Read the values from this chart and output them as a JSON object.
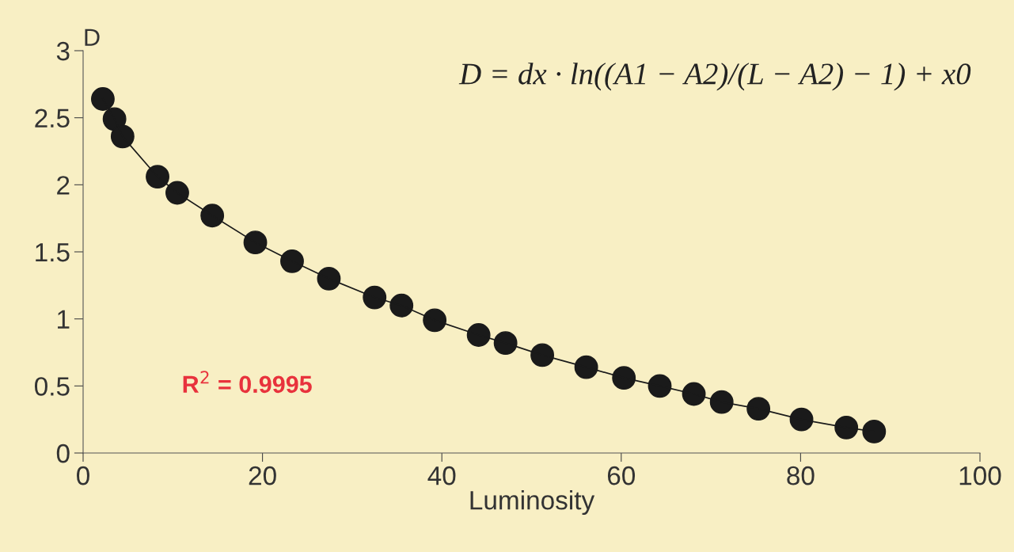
{
  "chart_data": {
    "type": "scatter",
    "xlabel": "Luminosity",
    "ylabel": "D",
    "xlim": [
      0,
      100
    ],
    "xticks": [
      0,
      20,
      40,
      60,
      80,
      100
    ],
    "ylim": [
      0,
      3
    ],
    "yticks": [
      0,
      {
        "value": 0.5,
        "label": "0.5"
      },
      1,
      {
        "value": 1.5,
        "label": "1.5"
      },
      2,
      {
        "value": 2.5,
        "label": "2.5"
      },
      3
    ],
    "grid": false,
    "legend": false,
    "series": [
      {
        "marker": "circle",
        "color": "#1a1a1a",
        "x": [
          2.2,
          3.5,
          4.4,
          8.3,
          10.5,
          14.4,
          19.2,
          23.3,
          27.4,
          32.5,
          35.5,
          39.2,
          44.1,
          47.1,
          51.2,
          56.1,
          60.3,
          64.3,
          68.1,
          71.2,
          75.3,
          80.1,
          85.1,
          88.2
        ],
        "values": [
          2.64,
          2.49,
          2.36,
          2.06,
          1.94,
          1.77,
          1.57,
          1.43,
          1.3,
          1.16,
          1.1,
          0.99,
          0.88,
          0.82,
          0.73,
          0.64,
          0.56,
          0.5,
          0.44,
          0.38,
          0.33,
          0.25,
          0.19,
          0.16
        ]
      },
      {
        "type": "line",
        "marker": "none",
        "color": "#1a1a1a",
        "x": [
          2.2,
          3.5,
          4.4,
          8.3,
          10.5,
          14.4,
          19.2,
          23.3,
          27.4,
          32.5,
          35.5,
          39.2,
          44.1,
          47.1,
          51.2,
          56.1,
          60.3,
          64.3,
          68.1,
          71.2,
          75.3,
          80.1,
          85.1,
          88.2
        ],
        "values": [
          2.64,
          2.49,
          2.36,
          2.06,
          1.94,
          1.77,
          1.57,
          1.43,
          1.3,
          1.16,
          1.1,
          0.99,
          0.88,
          0.82,
          0.73,
          0.64,
          0.56,
          0.5,
          0.44,
          0.38,
          0.33,
          0.25,
          0.19,
          0.16
        ]
      }
    ],
    "annotations": [
      "D = dx · ln((A1 − A2)/(L − A2) − 1) + x0",
      "R$^{2}$ = 0.9995"
    ]
  }
}
